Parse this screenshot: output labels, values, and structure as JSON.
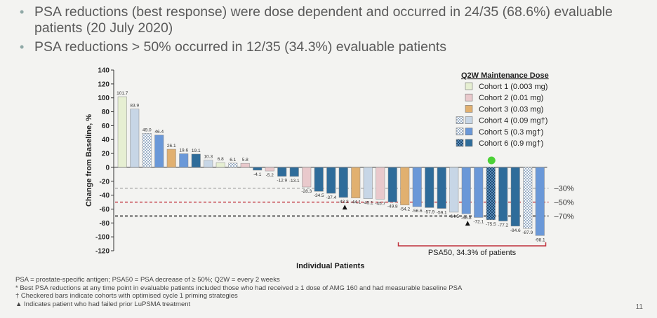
{
  "bullets": [
    "PSA reductions (best response) were dose dependent and occurred in 24/35 (68.6%) evaluable patients (20 July 2020)",
    "PSA reductions > 50% occurred in 12/35 (34.3%) evaluable patients"
  ],
  "chart_data": {
    "type": "bar",
    "xlabel": "Individual Patients",
    "ylabel": "Change from  Baseline, %",
    "ylim": [
      -120,
      140
    ],
    "yticks": [
      140,
      120,
      100,
      80,
      60,
      40,
      20,
      0,
      -20,
      -40,
      -60,
      -80,
      -100,
      -120
    ],
    "reference_lines": [
      {
        "value": -30,
        "label": "–30%",
        "color": "#aaaaaa"
      },
      {
        "value": -50,
        "label": "–50%",
        "color": "#c0303a"
      },
      {
        "value": -70,
        "label": "–70%",
        "color": "#222222"
      }
    ],
    "legend_title": "Q2W Maintenance Dose",
    "cohorts": [
      {
        "label": "Cohort 1",
        "dose": "(0.003 mg)",
        "color": "#e6efd2",
        "pattern": "solid"
      },
      {
        "label": "Cohort 2",
        "dose": "(0.01 mg)",
        "color": "#e9c9cc",
        "pattern": "solid"
      },
      {
        "label": "Cohort 3",
        "dose": "(0.03 mg)",
        "color": "#e1b070",
        "pattern": "solid"
      },
      {
        "label": "Cohort 4",
        "dose": "(0.09 mg†)",
        "color": "#c7d6e6",
        "pattern": "split"
      },
      {
        "label": "Cohort 5",
        "dose": "(0.3 mg†)",
        "color": "#6a98d8",
        "pattern": "split"
      },
      {
        "label": "Cohort 6",
        "dose": "(0.9 mg†)",
        "color": "#2e6c9a",
        "pattern": "split"
      }
    ],
    "bars": [
      {
        "value": 101.7,
        "label": "101.7",
        "cohort": 0,
        "checked": false
      },
      {
        "value": 83.9,
        "label": "83.9",
        "cohort": 3,
        "checked": false
      },
      {
        "value": 49.0,
        "label": "49.0",
        "cohort": 3,
        "checked": true
      },
      {
        "value": 46.4,
        "label": "46.4",
        "cohort": 4,
        "checked": false
      },
      {
        "value": 26.1,
        "label": "26.1",
        "cohort": 2,
        "checked": false
      },
      {
        "value": 19.6,
        "label": "19.6",
        "cohort": 4,
        "checked": false
      },
      {
        "value": 19.1,
        "label": "19.1",
        "cohort": 5,
        "checked": false
      },
      {
        "value": 10.3,
        "label": "10.3",
        "cohort": 3,
        "checked": false
      },
      {
        "value": 6.8,
        "label": "6.8",
        "cohort": 0,
        "checked": false
      },
      {
        "value": 6.1,
        "label": "6.1",
        "cohort": 4,
        "checked": true
      },
      {
        "value": 5.8,
        "label": "5.8",
        "cohort": 1,
        "checked": false
      },
      {
        "value": -4.1,
        "label": "-4.1",
        "cohort": 5,
        "checked": false
      },
      {
        "value": -5.2,
        "label": "-5.2",
        "cohort": 1,
        "checked": false
      },
      {
        "value": -12.9,
        "label": "-12.9",
        "cohort": 5,
        "checked": false
      },
      {
        "value": -13.1,
        "label": "-13.1",
        "cohort": 5,
        "checked": false
      },
      {
        "value": -28.3,
        "label": "-28.3",
        "cohort": 1,
        "checked": false
      },
      {
        "value": -34.5,
        "label": "-34.5",
        "cohort": 5,
        "checked": false
      },
      {
        "value": -37.4,
        "label": "-37.4",
        "cohort": 5,
        "checked": false
      },
      {
        "value": -43.3,
        "label": "-43.3",
        "cohort": 5,
        "checked": false
      },
      {
        "value": -44.1,
        "label": "-44.1",
        "cohort": 2,
        "checked": false
      },
      {
        "value": -45.1,
        "label": "-45.1",
        "cohort": 3,
        "checked": false
      },
      {
        "value": -45.7,
        "label": "-45.7",
        "cohort": 1,
        "checked": false
      },
      {
        "value": -49.8,
        "label": "-49.8",
        "cohort": 5,
        "checked": false
      },
      {
        "value": -54.2,
        "label": "-54.2",
        "cohort": 2,
        "checked": false
      },
      {
        "value": -56.6,
        "label": "-56.6",
        "cohort": 4,
        "checked": false
      },
      {
        "value": -57.9,
        "label": "-57.9",
        "cohort": 5,
        "checked": false
      },
      {
        "value": -59.1,
        "label": "-59.1",
        "cohort": 5,
        "checked": false
      },
      {
        "value": -64.5,
        "label": "-64.5",
        "cohort": 3,
        "checked": false
      },
      {
        "value": -66.8,
        "label": "-66.8",
        "cohort": 4,
        "checked": false
      },
      {
        "value": -72.1,
        "label": "-72.1",
        "cohort": 4,
        "checked": false
      },
      {
        "value": -75.5,
        "label": "-75.5",
        "cohort": 5,
        "checked": true
      },
      {
        "value": -77.2,
        "label": "-77.2",
        "cohort": 5,
        "checked": false
      },
      {
        "value": -84.6,
        "label": "-84.6",
        "cohort": 5,
        "checked": false
      },
      {
        "value": -87.9,
        "label": "-87.9",
        "cohort": 3,
        "checked": true
      },
      {
        "value": -98.1,
        "label": "-98.1",
        "cohort": 4,
        "checked": false
      }
    ],
    "markers": [
      {
        "bar_index": 18,
        "symbol": "▲"
      },
      {
        "bar_index": 28,
        "symbol": "▲"
      }
    ],
    "highlight_dot": {
      "bar_index": 30,
      "color": "#4cd137"
    },
    "psa50_bracket": {
      "from_bar": 23,
      "to_bar": 34,
      "label": "PSA50, 34.3% of patients",
      "color": "#c0303a"
    }
  },
  "footnotes": [
    "PSA = prostate-specific antigen; PSA50 = PSA decrease of ≥ 50%; Q2W = every 2 weeks",
    "* Best PSA reductions at any time point in evaluable patients included those who had received ≥ 1 dose of AMG 160 and had measurable baseline PSA",
    "† Checkered bars indicate cohorts with optimised cycle 1 priming strategies",
    "▲ Indicates patient who had failed prior LuPSMA treatment"
  ],
  "page_number": "11"
}
